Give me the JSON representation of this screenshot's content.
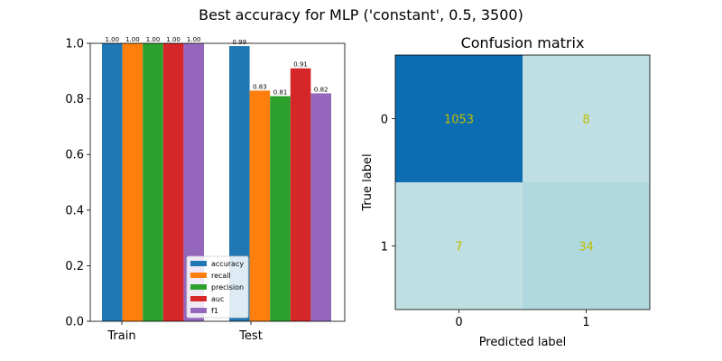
{
  "suptitle": "Best accuracy for MLP ('constant', 0.5, 3500)",
  "chart_data": [
    {
      "type": "bar",
      "categories": [
        "Train",
        "Test"
      ],
      "series": [
        {
          "name": "accuracy",
          "values": [
            1.0,
            0.99
          ],
          "color": "#1f77b4"
        },
        {
          "name": "recall",
          "values": [
            1.0,
            0.83
          ],
          "color": "#ff7f0e"
        },
        {
          "name": "precision",
          "values": [
            1.0,
            0.81
          ],
          "color": "#2ca02c"
        },
        {
          "name": "auc",
          "values": [
            1.0,
            0.91
          ],
          "color": "#d62728"
        },
        {
          "name": "f1",
          "values": [
            1.0,
            0.82
          ],
          "color": "#9467bd"
        }
      ],
      "value_labels": [
        [
          "1.00",
          "1.00",
          "1.00",
          "1.00",
          "1.00"
        ],
        [
          "0.99",
          "0.83",
          "0.81",
          "0.91",
          "0.82"
        ]
      ],
      "title": "",
      "xlabel": "",
      "ylabel": "",
      "ylim": [
        0,
        1
      ],
      "yticks": [
        "0.0",
        "0.2",
        "0.4",
        "0.6",
        "0.8",
        "1.0"
      ],
      "legend_position": "lower-right",
      "grid": false
    },
    {
      "type": "heatmap",
      "title": "Confusion matrix",
      "xlabel": "Predicted label",
      "ylabel": "True label",
      "xticks": [
        "0",
        "1"
      ],
      "yticks": [
        "0",
        "1"
      ],
      "values": [
        [
          1053,
          8
        ],
        [
          7,
          34
        ]
      ],
      "cell_colors": [
        [
          "#0c6db3",
          "#c0dfe3"
        ],
        [
          "#c0dfe3",
          "#b0d9df"
        ]
      ],
      "annotation_color": "#bfbf00",
      "colorbar": false
    }
  ]
}
